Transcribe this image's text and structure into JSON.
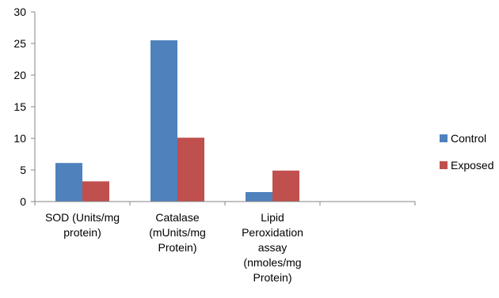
{
  "chart_data": {
    "type": "bar",
    "categories": [
      [
        "SOD (Units/mg",
        "protein)"
      ],
      [
        "Catalase",
        "(mUnits/mg",
        "Protein)"
      ],
      [
        "Lipid",
        "Peroxidation",
        "assay",
        "(nmoles/mg",
        "Protein)"
      ],
      [
        ""
      ]
    ],
    "series": [
      {
        "name": "Control",
        "values": [
          6.1,
          25.5,
          1.5,
          null
        ],
        "color": "#4F81BD"
      },
      {
        "name": "Exposed",
        "values": [
          3.2,
          10.1,
          4.9,
          null
        ],
        "color": "#C0504D"
      }
    ],
    "ylim": [
      0,
      30
    ],
    "yticks": [
      0,
      5,
      10,
      15,
      20,
      25,
      30
    ],
    "grid": false,
    "legend": "right",
    "title": "",
    "xlabel": "",
    "ylabel": ""
  }
}
